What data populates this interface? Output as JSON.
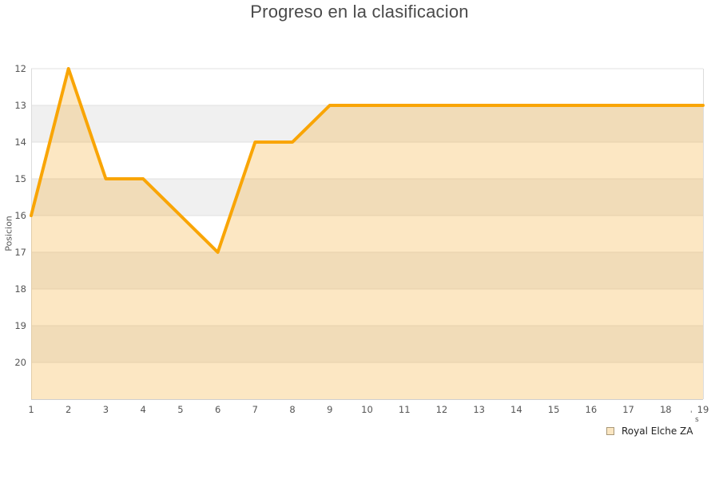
{
  "title": "Progreso en la clasificacion",
  "y_axis": {
    "label": "Posicion",
    "ticks": [
      12,
      13,
      14,
      15,
      16,
      17,
      18,
      19,
      20
    ]
  },
  "x_axis": {
    "ticks": [
      1,
      2,
      3,
      4,
      5,
      6,
      7,
      8,
      9,
      10,
      11,
      12,
      13,
      14,
      15,
      16,
      17,
      18,
      19
    ]
  },
  "legend": {
    "series_label": "Royal Elche ZA",
    "stray_marks": [
      "'",
      "'",
      "s"
    ]
  },
  "chart_data": {
    "type": "area",
    "title": "Progreso en la clasificacion",
    "xlabel": "",
    "ylabel": "Posicion",
    "x": [
      1,
      2,
      3,
      4,
      5,
      6,
      7,
      8,
      9,
      10,
      11,
      12,
      13,
      14,
      15,
      16,
      17,
      18,
      19
    ],
    "series": [
      {
        "name": "Royal Elche ZA",
        "values": [
          16,
          12,
          15,
          15,
          16,
          17,
          14,
          14,
          13,
          13,
          13,
          13,
          13,
          13,
          13,
          13,
          13,
          13,
          13
        ]
      }
    ],
    "y_axis_inverted": true,
    "ylim": [
      21,
      12
    ],
    "y_ticks": [
      12,
      13,
      14,
      15,
      16,
      17,
      18,
      19,
      20
    ],
    "grid": true,
    "shaded_y_bands": [
      [
        13,
        14
      ],
      [
        15,
        16
      ],
      [
        17,
        18
      ],
      [
        19,
        20
      ]
    ],
    "legend_position": "bottom-right",
    "colors": {
      "line": "#f9a505",
      "area_fill": "rgba(245,166,35,0.27)",
      "band": "#f0f0f0",
      "gridline": "#e1e1e1",
      "axis_border": "#dcdcdc",
      "bottom_axis": "#cfcfcf",
      "tick_text": "#555555",
      "title_text": "#4a4a4a"
    }
  }
}
